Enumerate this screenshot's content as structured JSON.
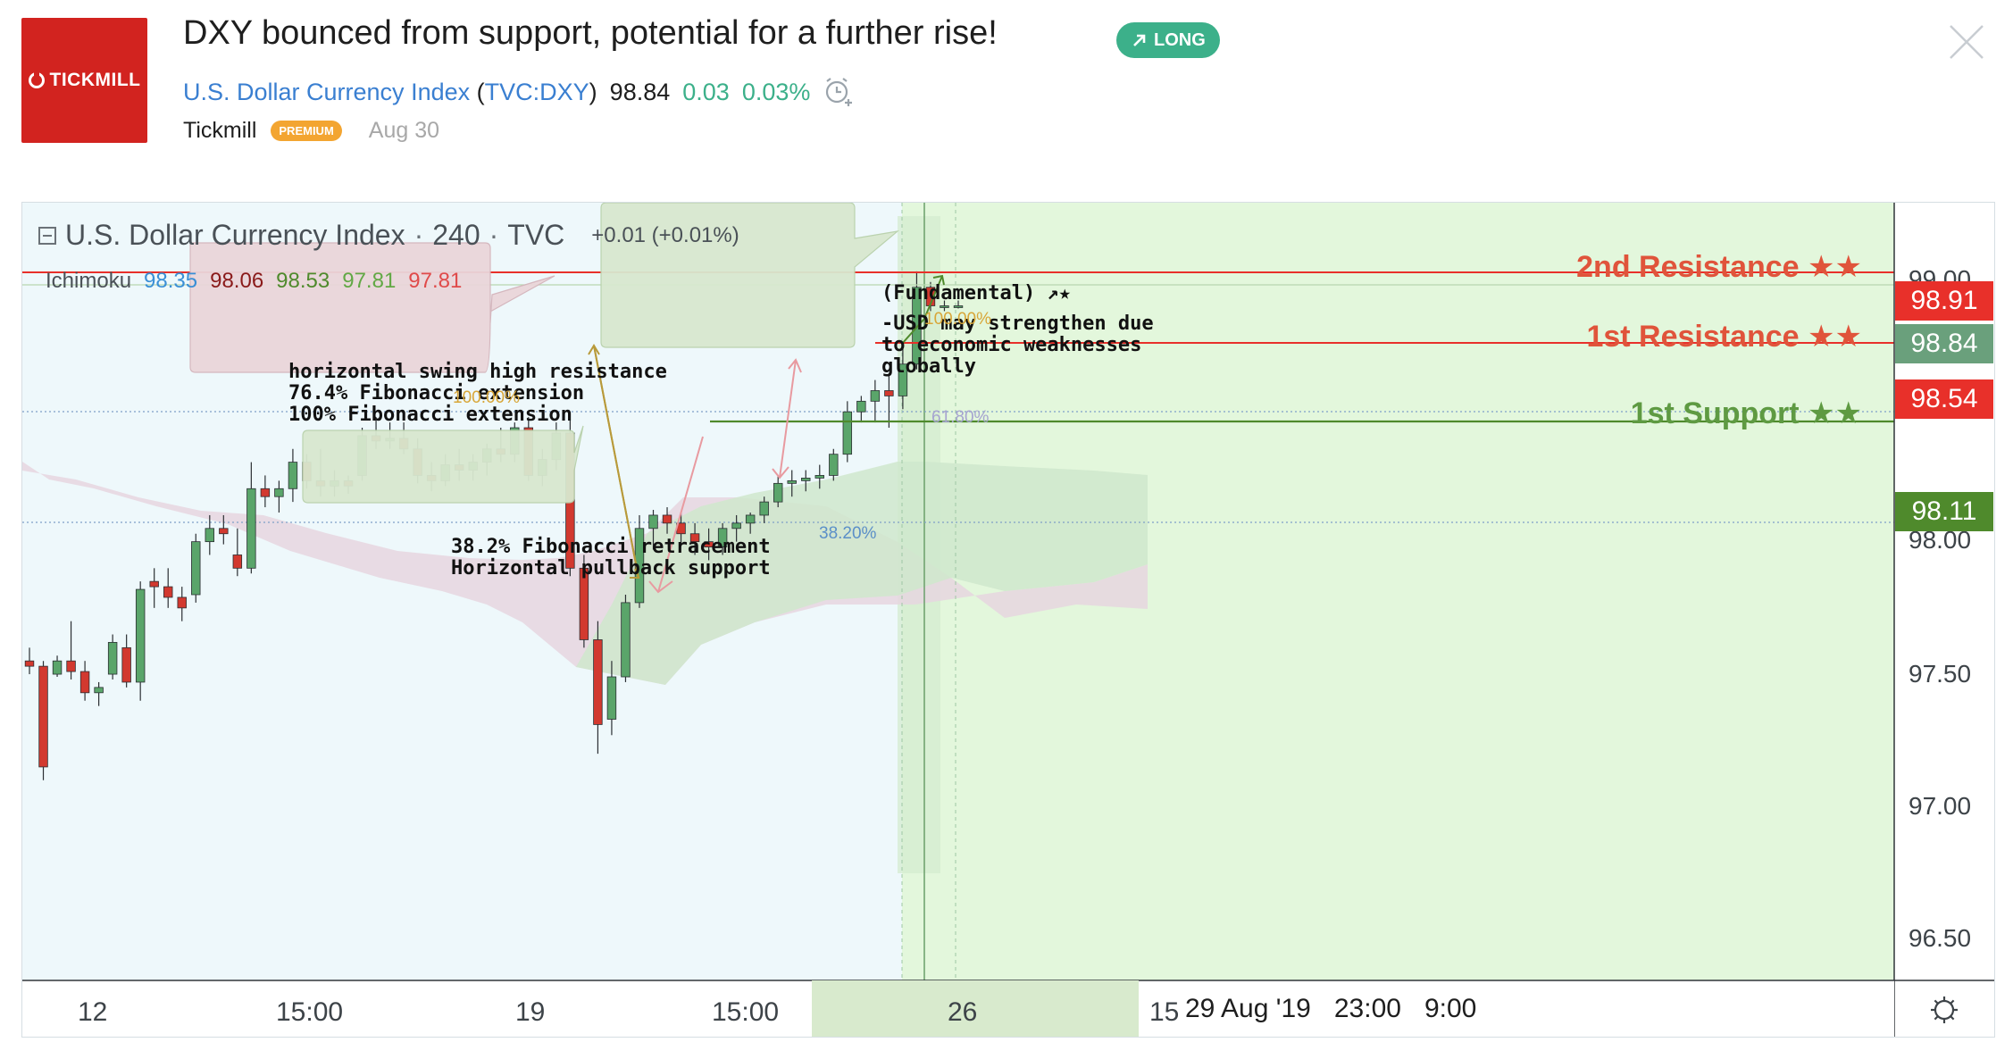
{
  "header": {
    "logo_text": "TICKMILL",
    "title": "DXY bounced from support, potential for a further rise!",
    "badge": "LONG",
    "symbol_name": "U.S. Dollar Currency Index",
    "symbol_ticker_open": "(",
    "symbol_ticker": "TVC:DXY",
    "symbol_ticker_close": ")",
    "price": "98.84",
    "change": "0.03",
    "change_pct": "0.03%",
    "author": "Tickmill",
    "author_badge": "PREMIUM",
    "date": "Aug 30"
  },
  "legend": {
    "symbol": "U.S. Dollar Currency Index",
    "sep1": "·",
    "interval": "240",
    "sep2": "·",
    "exchange": "TVC",
    "change": "+0.01 (+0.01%)",
    "indicator": "Ichimoku",
    "ich_values": [
      {
        "v": "98.35",
        "color": "#3a8fd6"
      },
      {
        "v": "98.06",
        "color": "#8a1a1a"
      },
      {
        "v": "98.53",
        "color": "#4f8a2c"
      },
      {
        "v": "97.81",
        "color": "#62a845"
      },
      {
        "v": "97.81",
        "color": "#e04a4a"
      }
    ]
  },
  "annotations": {
    "resistance2": "2nd Resistance ★★",
    "resistance1": "1st Resistance ★★",
    "support1": "1st Support ★★",
    "box_left_lines": [
      "horizontal swing high resistance",
      "76.4% Fibonacci extension",
      "100% Fibonacci extension"
    ],
    "box_mid_lines": [
      "38.2% Fibonacci retracement",
      "Horizontal pullback support"
    ],
    "box_fund_title": "(Fundamental) ↗★",
    "box_fund_lines": [
      "-USD may strengthen due",
      "to economic weaknesses",
      "globally"
    ],
    "fib_100_left": "100.00%",
    "fib_100_right": "100.00%",
    "fib_618": "61.80%",
    "fib_382": "38.20%"
  },
  "price_axis": {
    "ticks": [
      "99.00",
      "98.00",
      "97.50",
      "97.00",
      "96.50"
    ],
    "labels": [
      {
        "text": "98.91",
        "bg": "#e8302a"
      },
      {
        "text": "98.84",
        "bg": "#6aa07c"
      },
      {
        "text": "98.54",
        "bg": "#e8302a"
      },
      {
        "text": "98.11",
        "bg": "#4f8a2c"
      }
    ]
  },
  "time_axis": {
    "ticks": [
      "12",
      "15:00",
      "19",
      "15:00",
      "26",
      "15"
    ],
    "crosshair_labels": [
      "29 Aug '19",
      "23:00",
      "9:00"
    ]
  },
  "colors": {
    "up": "#5aa56a",
    "down": "#d2392f",
    "resistance": "#e8302a",
    "support": "#4f8a2c",
    "cloud_bear": "#e2d2dc",
    "cloud_bull": "#cfe8cf",
    "chart_bg": "#eaf7fb",
    "zone_bg": "#e6f8e0"
  },
  "chart_data": {
    "type": "candlestick",
    "symbol": "DXY",
    "interval": "240",
    "y_range": [
      96.35,
      99.1
    ],
    "candles": [
      [
        97.5,
        97.55,
        97.45,
        97.48
      ],
      [
        97.48,
        97.5,
        97.05,
        97.1
      ],
      [
        97.45,
        97.52,
        97.44,
        97.5
      ],
      [
        97.5,
        97.65,
        97.43,
        97.46
      ],
      [
        97.46,
        97.5,
        97.35,
        97.38
      ],
      [
        97.38,
        97.42,
        97.33,
        97.4
      ],
      [
        97.45,
        97.6,
        97.43,
        97.57
      ],
      [
        97.55,
        97.6,
        97.4,
        97.42
      ],
      [
        97.42,
        97.8,
        97.35,
        97.77
      ],
      [
        97.8,
        97.85,
        97.7,
        97.78
      ],
      [
        97.78,
        97.85,
        97.7,
        97.74
      ],
      [
        97.74,
        97.78,
        97.65,
        97.7
      ],
      [
        97.75,
        97.98,
        97.72,
        97.95
      ],
      [
        97.95,
        98.05,
        97.9,
        98.0
      ],
      [
        98.0,
        98.05,
        97.94,
        97.98
      ],
      [
        97.9,
        98.0,
        97.82,
        97.85
      ],
      [
        97.85,
        98.25,
        97.83,
        98.15
      ],
      [
        98.15,
        98.2,
        98.08,
        98.12
      ],
      [
        98.12,
        98.18,
        98.06,
        98.15
      ],
      [
        98.15,
        98.3,
        98.1,
        98.25
      ],
      [
        98.25,
        98.28,
        98.15,
        98.18
      ],
      [
        98.18,
        98.3,
        98.12,
        98.16
      ],
      [
        98.16,
        98.22,
        98.12,
        98.18
      ],
      [
        98.18,
        98.2,
        98.13,
        98.16
      ],
      [
        98.2,
        98.38,
        98.18,
        98.35
      ],
      [
        98.35,
        98.42,
        98.3,
        98.33
      ],
      [
        98.33,
        98.4,
        98.3,
        98.34
      ],
      [
        98.34,
        98.4,
        98.28,
        98.3
      ],
      [
        98.3,
        98.34,
        98.17,
        98.2
      ],
      [
        98.2,
        98.25,
        98.14,
        98.18
      ],
      [
        98.18,
        98.28,
        98.16,
        98.24
      ],
      [
        98.24,
        98.3,
        98.18,
        98.22
      ],
      [
        98.22,
        98.28,
        98.18,
        98.25
      ],
      [
        98.25,
        98.32,
        98.2,
        98.3
      ],
      [
        98.3,
        98.38,
        98.25,
        98.28
      ],
      [
        98.28,
        98.4,
        98.25,
        98.38
      ],
      [
        98.38,
        98.42,
        98.18,
        98.2
      ],
      [
        98.2,
        98.3,
        98.16,
        98.26
      ],
      [
        98.26,
        98.4,
        98.22,
        98.36
      ],
      [
        98.36,
        98.42,
        97.82,
        97.85
      ],
      [
        97.85,
        97.9,
        97.55,
        97.58
      ],
      [
        97.58,
        97.65,
        97.15,
        97.26
      ],
      [
        97.28,
        97.5,
        97.22,
        97.44
      ],
      [
        97.44,
        97.75,
        97.42,
        97.72
      ],
      [
        97.72,
        98.05,
        97.7,
        98.0
      ],
      [
        98.0,
        98.07,
        97.92,
        98.05
      ],
      [
        98.05,
        98.08,
        97.98,
        98.02
      ],
      [
        98.02,
        98.06,
        97.94,
        97.98
      ],
      [
        97.98,
        98.02,
        97.9,
        97.95
      ],
      [
        97.95,
        98.0,
        97.88,
        97.93
      ],
      [
        97.93,
        98.02,
        97.9,
        98.0
      ],
      [
        98.0,
        98.05,
        97.95,
        98.02
      ],
      [
        98.02,
        98.06,
        97.98,
        98.05
      ],
      [
        98.05,
        98.12,
        98.02,
        98.1
      ],
      [
        98.1,
        98.2,
        98.08,
        98.17
      ],
      [
        98.17,
        98.22,
        98.12,
        98.18
      ],
      [
        98.18,
        98.22,
        98.14,
        98.19
      ],
      [
        98.19,
        98.24,
        98.15,
        98.2
      ],
      [
        98.2,
        98.3,
        98.18,
        98.28
      ],
      [
        98.28,
        98.48,
        98.25,
        98.44
      ],
      [
        98.44,
        98.5,
        98.4,
        98.48
      ],
      [
        98.48,
        98.56,
        98.4,
        98.52
      ],
      [
        98.52,
        98.58,
        98.38,
        98.5
      ],
      [
        98.5,
        98.68,
        98.45,
        98.62
      ],
      [
        98.62,
        98.97,
        98.6,
        98.91
      ],
      [
        98.91,
        98.93,
        98.82,
        98.84
      ],
      [
        98.84,
        98.86,
        98.82,
        98.84
      ],
      [
        98.84,
        98.86,
        98.83,
        98.84
      ]
    ]
  }
}
